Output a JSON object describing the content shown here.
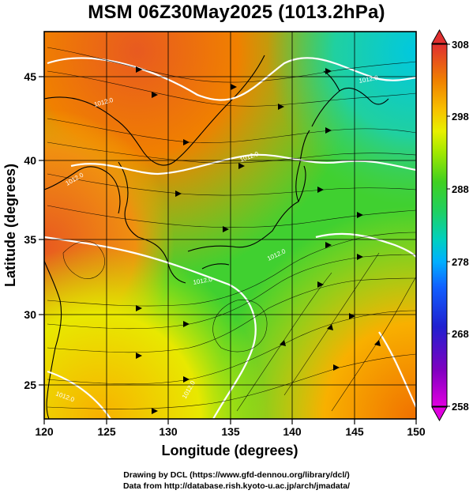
{
  "title": "MSM 06Z30May2025 (1013.2hPa)",
  "x_axis": {
    "label": "Longitude (degrees)",
    "ticks": [
      "120",
      "125",
      "130",
      "135",
      "140",
      "145",
      "150"
    ],
    "range": [
      120,
      150
    ]
  },
  "y_axis": {
    "label": "Latitude  (degrees)",
    "ticks": [
      "25",
      "30",
      "35",
      "40",
      "45"
    ],
    "range": [
      22.5,
      47.5
    ]
  },
  "colorbar": {
    "ticks": [
      "258",
      "268",
      "278",
      "288",
      "298",
      "308"
    ],
    "range": [
      258,
      308
    ],
    "colors": [
      "#e000e0",
      "#8000c0",
      "#2020d0",
      "#1060ff",
      "#00a0ff",
      "#00d0d0",
      "#00d8a0",
      "#20d060",
      "#40d020",
      "#80e000",
      "#d0f000",
      "#f0e000",
      "#f8b000",
      "#f08000",
      "#e85020",
      "#e03030"
    ]
  },
  "contour_labels": [
    "1012.0",
    "1012.0",
    "1012.0",
    "1012.0",
    "1012.0",
    "1012.0",
    "1012.0",
    "1012.0"
  ],
  "credits": {
    "line1": "Drawing by DCL (https://www.gfd-dennou.org/library/dcl/)",
    "line2": "Data from http://database.rish.kyoto-u.ac.jp/arch/jmadata/"
  }
}
